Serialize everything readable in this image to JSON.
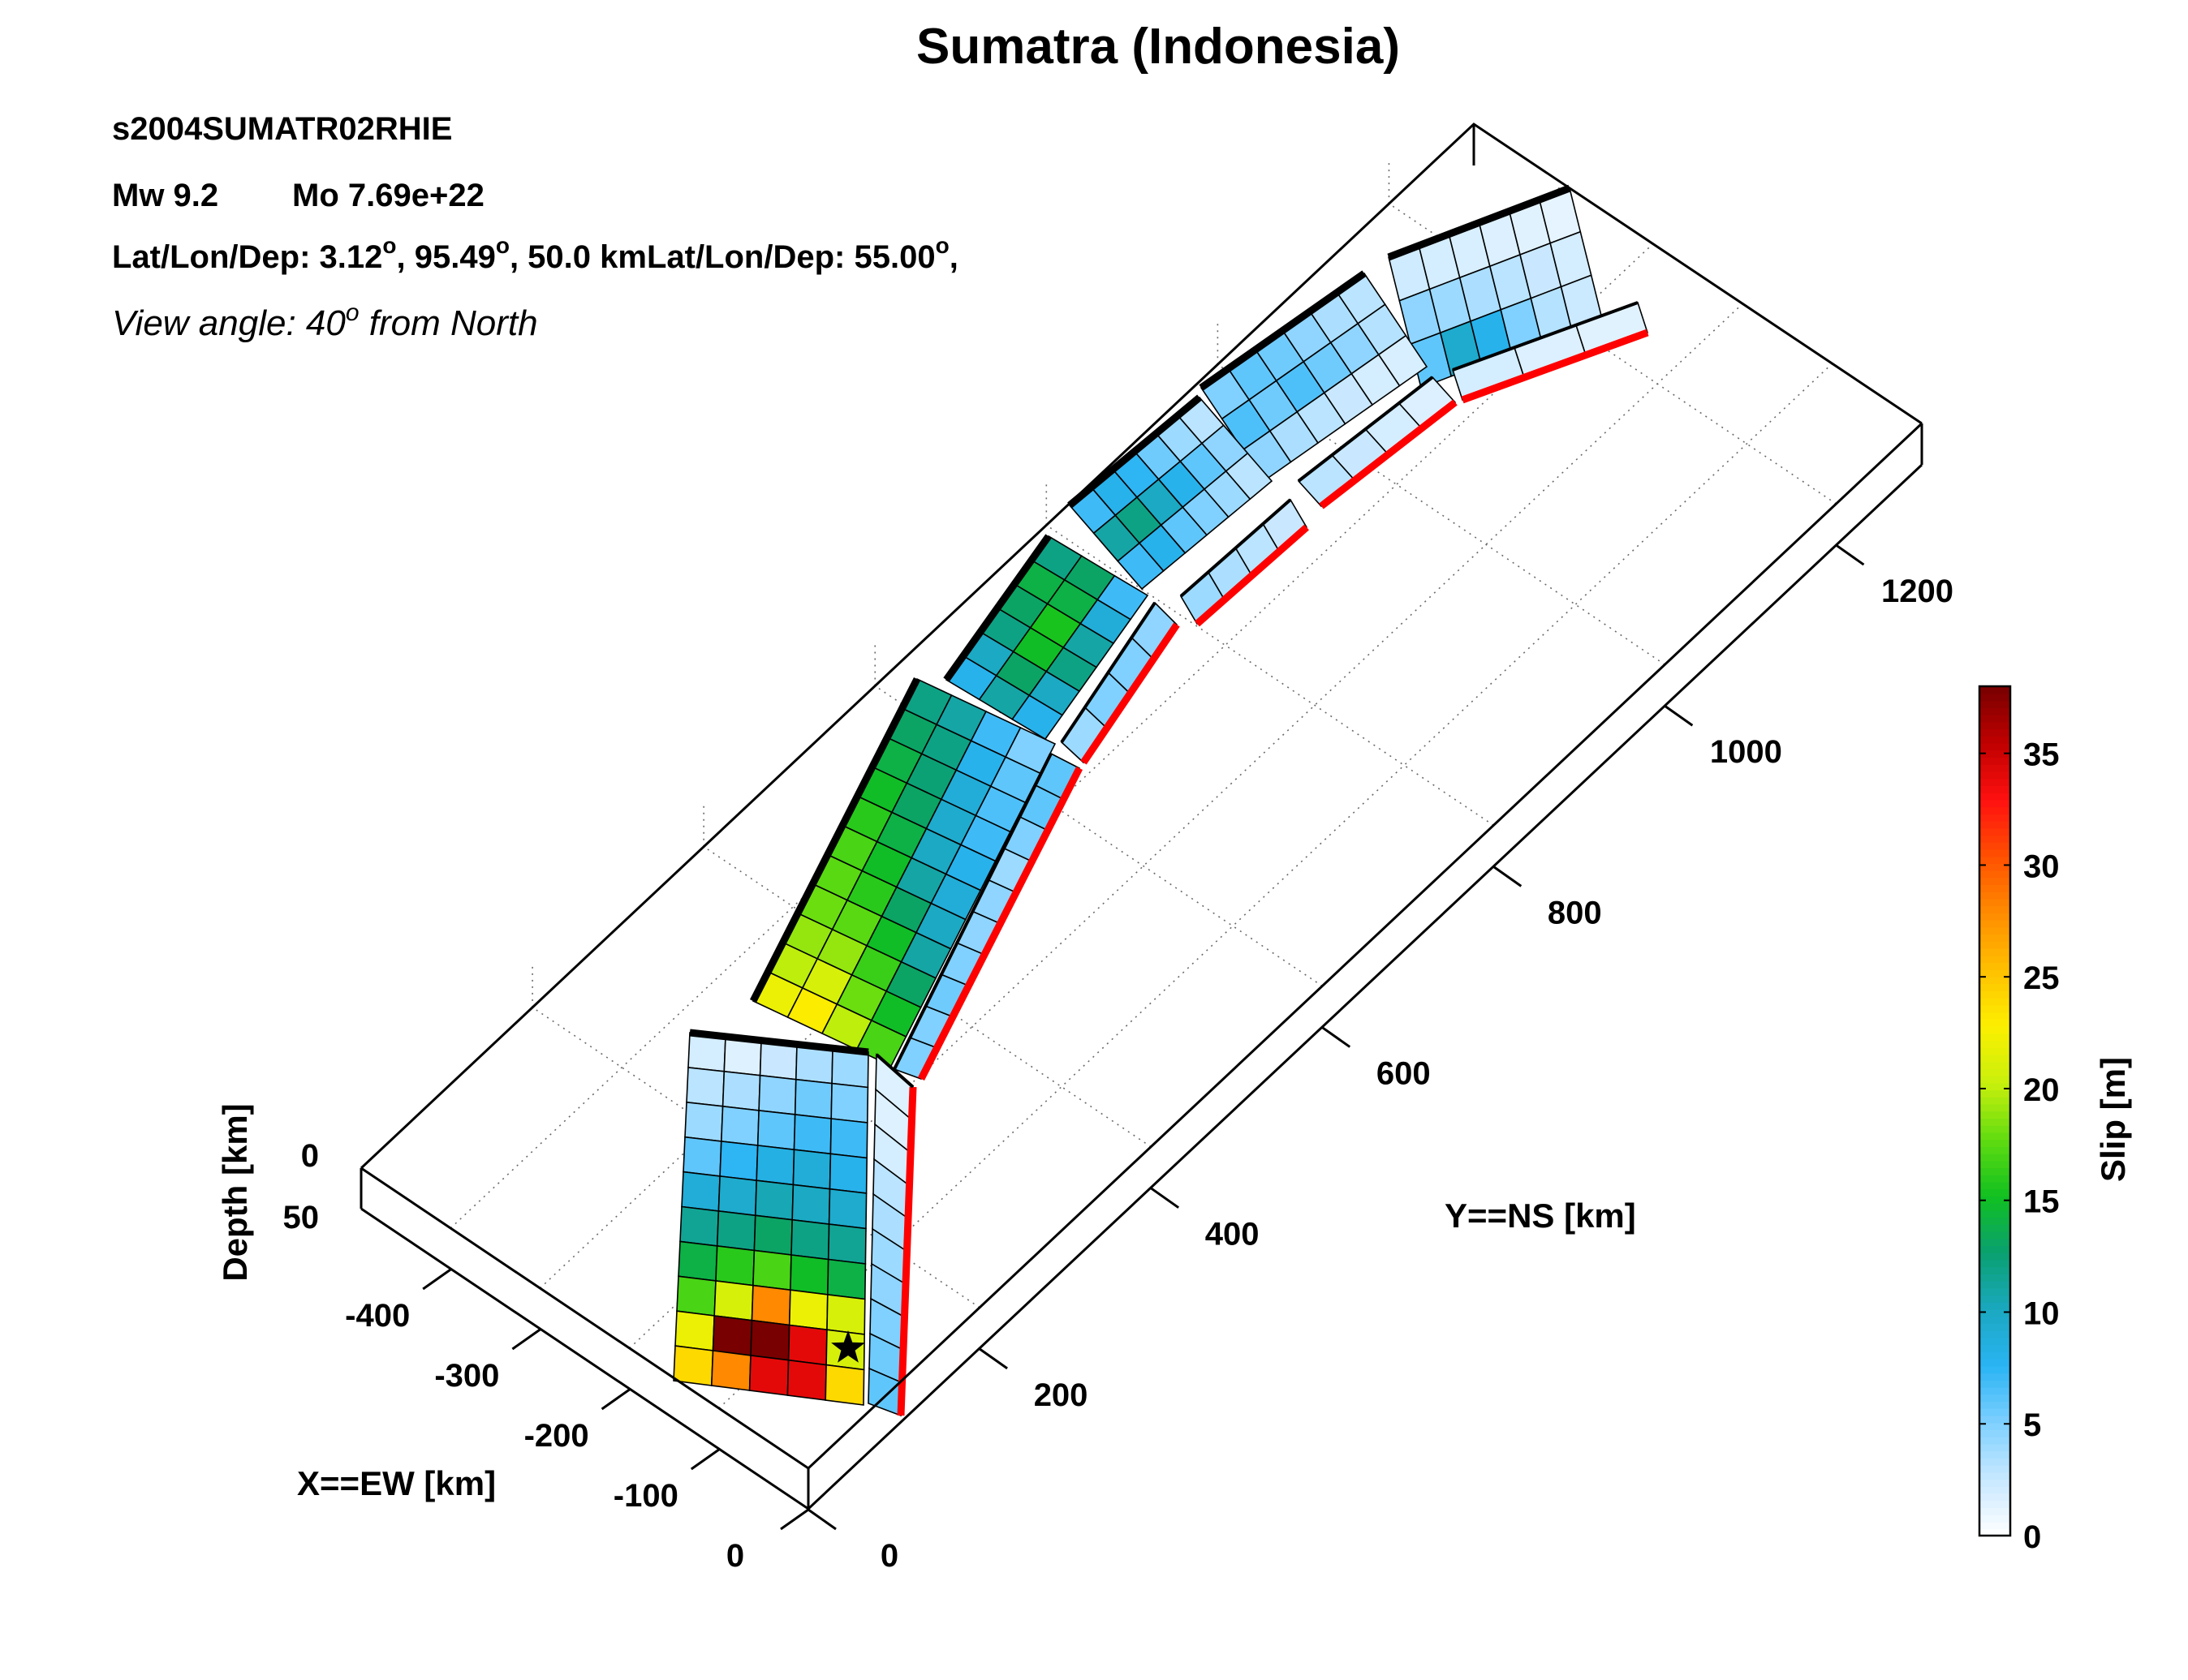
{
  "header": {
    "title": "Sumatra (Indonesia)",
    "event_id": "s2004SUMATR02RHIE",
    "mw_label": "Mw 9.2",
    "mo_label": "Mo 7.69e+22",
    "location_text": "Lat/Lon/Dep: 3.12",
    "lon_text": ", 95.49",
    "dep_text": ", 50.0 kmLat/Lon/Dep: 55.00",
    "trail_text": ",",
    "degree_mark": "o",
    "view_prefix": "View angle:   40",
    "view_suffix": " from North"
  },
  "chart_data": {
    "type": "heatmap",
    "title": "Sumatra (Indonesia)",
    "xlabel": "X==EW [km]",
    "ylabel": "Y==NS [km]",
    "zlabel": "Depth [km]",
    "x_ticks": [
      "-400",
      "-300",
      "-200",
      "-100",
      "0"
    ],
    "y_ticks": [
      "0",
      "200",
      "400",
      "600",
      "800",
      "1000",
      "1200"
    ],
    "z_ticks": [
      "0",
      "50"
    ],
    "view_angle_deg_from_north": 40,
    "grid": true,
    "colorbar": {
      "label": "Slip [m]",
      "range": [
        0,
        38
      ],
      "ticks": [
        "0",
        "5",
        "10",
        "15",
        "20",
        "25",
        "30",
        "35"
      ],
      "colors": [
        "#ffffff",
        "#c8e8ff",
        "#7ed0ff",
        "#2ab4f4",
        "#1aa8c0",
        "#0aa070",
        "#10c020",
        "#60dc10",
        "#c8f00c",
        "#fcf000",
        "#ffc000",
        "#ff8c00",
        "#ff5000",
        "#ff1010",
        "#c00000",
        "#780000"
      ]
    },
    "segments": [
      {
        "name": "segment-1",
        "slip": [
          [
            2.2,
            2.0,
            1.8,
            1.6,
            1.4,
            1.2
          ],
          [
            4.5,
            4.0,
            3.5,
            3.0,
            2.5,
            2.0
          ],
          [
            6.0,
            9.5,
            8.0,
            5.0,
            3.2,
            2.4
          ]
        ],
        "lower_slip": [
          2.0,
          1.6,
          1.4
        ]
      },
      {
        "name": "segment-2",
        "slip": [
          [
            5.0,
            6.0,
            5.5,
            4.5,
            3.5,
            3.0
          ],
          [
            6.5,
            5.5,
            6.5,
            5.5,
            4.5,
            3.2
          ],
          [
            4.5,
            3.5,
            3.0,
            2.5,
            2.0,
            1.8
          ]
        ],
        "lower_slip": [
          3.0,
          2.5,
          2.0,
          1.6
        ]
      },
      {
        "name": "segment-3",
        "slip": [
          [
            7.0,
            8.0,
            7.5,
            5.5,
            4.0,
            3.0
          ],
          [
            11.0,
            12.0,
            10.0,
            8.0,
            6.0,
            4.5
          ],
          [
            7.0,
            8.0,
            6.0,
            5.0,
            4.0,
            3.0
          ]
        ],
        "lower_slip": [
          4.0,
          3.5,
          3.0,
          2.5
        ]
      },
      {
        "name": "segment-4",
        "slip": [
          [
            8.0,
            10.0,
            12.0,
            13.0,
            14.0,
            12.0
          ],
          [
            11.0,
            13.0,
            15.0,
            15.5,
            14.0,
            13.0
          ],
          [
            8.0,
            10.0,
            12.0,
            11.0,
            9.0,
            7.0
          ]
        ],
        "lower_slip": [
          4.0,
          5.0,
          5.0,
          4.5
        ]
      },
      {
        "name": "segment-5",
        "slip": [
          [
            22.0,
            20.0,
            19.0,
            18.0,
            17.5,
            17.0,
            16.0,
            15.0,
            14.0,
            13.0,
            12.0
          ],
          [
            23.0,
            21.0,
            19.0,
            17.5,
            16.0,
            15.0,
            14.0,
            13.0,
            12.5,
            12.0,
            11.0
          ],
          [
            20.0,
            18.0,
            16.5,
            15.0,
            13.0,
            11.0,
            10.0,
            9.5,
            9.0,
            8.0,
            7.0
          ],
          [
            17.0,
            15.0,
            13.0,
            11.0,
            10.0,
            9.0,
            8.0,
            7.0,
            6.5,
            6.0,
            5.0
          ]
        ],
        "lower_slip": [
          5.0,
          5.0,
          5.5,
          5.0,
          4.5,
          4.5,
          4.0,
          5.0,
          6.0,
          6.0
        ]
      },
      {
        "name": "segment-6",
        "slip": [
          [
            2.0,
            3.0,
            4.0,
            6.0,
            9.0,
            11.5,
            14.0,
            17.0,
            22.0,
            24.0
          ],
          [
            1.5,
            3.5,
            5.0,
            7.5,
            9.5,
            12.0,
            16.0,
            21.0,
            38.0,
            28.0
          ],
          [
            2.5,
            4.5,
            6.0,
            8.5,
            10.5,
            13.0,
            17.0,
            28.0,
            38.0,
            34.0
          ],
          [
            3.5,
            5.5,
            7.0,
            9.0,
            10.0,
            12.0,
            15.0,
            22.0,
            34.0,
            34.0
          ],
          [
            4.0,
            5.0,
            7.0,
            8.0,
            9.5,
            11.5,
            14.0,
            21.0,
            21.0,
            24.0
          ]
        ],
        "lower_slip": [
          1.5,
          1.5,
          2.0,
          3.0,
          3.5,
          4.0,
          4.5,
          5.0,
          5.5,
          6.0
        ]
      }
    ],
    "hypocenter": {
      "marker": "star",
      "segment": "segment-6"
    }
  }
}
